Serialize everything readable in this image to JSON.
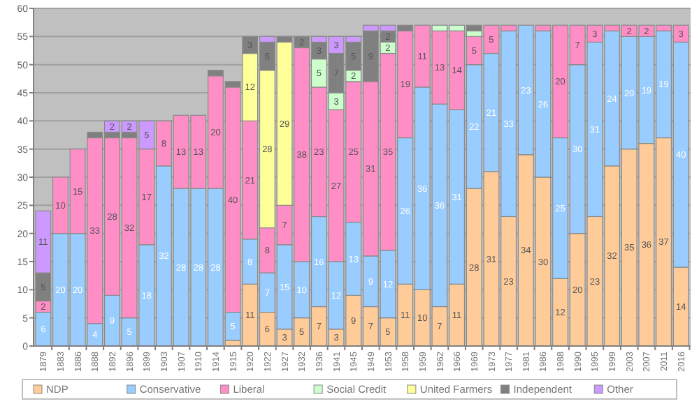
{
  "chart_data": {
    "type": "bar",
    "stacked": true,
    "categories": [
      "1879",
      "1883",
      "1886",
      "1888",
      "1892",
      "1896",
      "1899",
      "1903",
      "1907",
      "1910",
      "1914",
      "1915",
      "1920",
      "1922",
      "1927",
      "1932",
      "1936",
      "1941",
      "1945",
      "1949",
      "1953",
      "1958",
      "1959",
      "1962",
      "1966",
      "1969",
      "1973",
      "1977",
      "1981",
      "1986",
      "1988",
      "1990",
      "1995",
      "1999",
      "2003",
      "2007",
      "2011",
      "2016"
    ],
    "ylim": [
      0,
      60
    ],
    "yticks": [
      0,
      5,
      10,
      15,
      20,
      25,
      30,
      35,
      40,
      45,
      50,
      55,
      60
    ],
    "grid": "y",
    "legend": "bottom",
    "series": [
      {
        "name": "NDP",
        "color": "#ffcc99",
        "values": [
          null,
          null,
          null,
          null,
          null,
          null,
          null,
          null,
          null,
          null,
          null,
          1,
          11,
          6,
          3,
          5,
          7,
          3,
          9,
          7,
          5,
          11,
          10,
          7,
          11,
          28,
          31,
          23,
          34,
          30,
          12,
          20,
          23,
          32,
          35,
          36,
          37,
          14
        ],
        "value_labels": [
          null,
          null,
          null,
          null,
          null,
          null,
          null,
          null,
          null,
          null,
          null,
          null,
          "11",
          "6",
          "3",
          "5",
          "7",
          "3",
          "9",
          "7",
          "5",
          "11",
          "10",
          "7",
          "11",
          "28",
          "31",
          "23",
          "34",
          "30",
          "12",
          "20",
          "23",
          "32",
          "35",
          "36",
          "37",
          "14"
        ]
      },
      {
        "name": "Conservative",
        "color": "#99ccff",
        "values": [
          6,
          20,
          20,
          4,
          9,
          5,
          18,
          32,
          28,
          28,
          28,
          5,
          8,
          7,
          15,
          10,
          16,
          12,
          13,
          9,
          12,
          26,
          36,
          36,
          31,
          22,
          21,
          33,
          23,
          26,
          25,
          30,
          31,
          24,
          20,
          19,
          19,
          40
        ],
        "value_labels": [
          "6",
          "20",
          "20",
          "4",
          "9",
          "5",
          "18",
          "32",
          "28",
          "28",
          "28",
          "5",
          "8",
          "7",
          "15",
          "10",
          "16",
          "12",
          "13",
          "9",
          "12",
          "26",
          "36",
          "36",
          "31",
          "22",
          "21",
          "33",
          "23",
          "26",
          "25",
          "30",
          "31",
          "24",
          "20",
          "19",
          "19",
          "40"
        ]
      },
      {
        "name": "Liberal",
        "color": "#ff8ec6",
        "values": [
          2,
          10,
          15,
          33,
          28,
          32,
          17,
          8,
          13,
          13,
          20,
          40,
          21,
          8,
          7,
          38,
          23,
          27,
          25,
          31,
          35,
          19,
          11,
          13,
          14,
          5,
          5,
          1,
          null,
          1,
          20,
          7,
          3,
          1,
          2,
          2,
          1,
          3
        ],
        "value_labels": [
          "2",
          "10",
          "15",
          "33",
          "28",
          "32",
          "17",
          "8",
          "13",
          "13",
          "20",
          "40",
          "21",
          "8",
          "7",
          "38",
          "23",
          "27",
          "25",
          "31",
          "35",
          "19",
          "11",
          "13",
          "14",
          "5",
          "5",
          null,
          null,
          null,
          "20",
          "7",
          "3",
          null,
          "2",
          "2",
          null,
          "3"
        ]
      },
      {
        "name": "Social Credit",
        "color": "#ccffcc",
        "values": [
          null,
          null,
          null,
          null,
          null,
          null,
          null,
          null,
          null,
          null,
          null,
          null,
          null,
          null,
          null,
          null,
          5,
          3,
          2,
          null,
          2,
          null,
          null,
          1,
          1,
          1,
          null,
          null,
          null,
          null,
          null,
          null,
          null,
          null,
          null,
          null,
          null,
          null
        ],
        "value_labels": [
          null,
          null,
          null,
          null,
          null,
          null,
          null,
          null,
          null,
          null,
          null,
          null,
          null,
          null,
          null,
          null,
          "5",
          "3",
          "2",
          null,
          "2",
          null,
          null,
          null,
          null,
          null,
          null,
          null,
          null,
          null,
          null,
          null,
          null,
          null,
          null,
          null,
          null,
          null
        ]
      },
      {
        "name": "United Farmers",
        "color": "#ffff99",
        "values": [
          null,
          null,
          null,
          null,
          null,
          null,
          null,
          null,
          null,
          null,
          null,
          null,
          12,
          28,
          29,
          null,
          null,
          null,
          null,
          null,
          null,
          null,
          null,
          null,
          null,
          null,
          null,
          null,
          null,
          null,
          null,
          null,
          null,
          null,
          null,
          null,
          null,
          null
        ],
        "value_labels": [
          null,
          null,
          null,
          null,
          null,
          null,
          null,
          null,
          null,
          null,
          null,
          null,
          "12",
          "28",
          "29",
          null,
          null,
          null,
          null,
          null,
          null,
          null,
          null,
          null,
          null,
          null,
          null,
          null,
          null,
          null,
          null,
          null,
          null,
          null,
          null,
          null,
          null,
          null
        ]
      },
      {
        "name": "Independent",
        "color": "#808080",
        "values": [
          5,
          null,
          null,
          1,
          1,
          1,
          null,
          null,
          null,
          null,
          1,
          1,
          3,
          5,
          1,
          2,
          3,
          7,
          5,
          9,
          2,
          1,
          null,
          null,
          null,
          1,
          null,
          null,
          null,
          null,
          null,
          null,
          null,
          null,
          null,
          null,
          null,
          null
        ],
        "value_labels": [
          "5",
          null,
          null,
          null,
          null,
          null,
          null,
          null,
          null,
          null,
          null,
          null,
          "3",
          "5",
          null,
          "2",
          "3",
          "7",
          "5",
          "9",
          "2",
          null,
          null,
          null,
          null,
          null,
          null,
          null,
          null,
          null,
          null,
          null,
          null,
          null,
          null,
          null,
          null,
          null
        ]
      },
      {
        "name": "Other",
        "color": "#cc99ff",
        "values": [
          11,
          null,
          null,
          null,
          2,
          2,
          5,
          null,
          null,
          null,
          null,
          null,
          null,
          1,
          null,
          null,
          1,
          3,
          1,
          1,
          1,
          null,
          null,
          null,
          null,
          null,
          null,
          null,
          null,
          null,
          null,
          null,
          null,
          null,
          null,
          null,
          null,
          null
        ],
        "value_labels": [
          "11",
          null,
          null,
          null,
          "2",
          "2",
          "5",
          null,
          null,
          null,
          null,
          null,
          null,
          null,
          null,
          null,
          null,
          "3",
          null,
          null,
          null,
          null,
          null,
          null,
          null,
          null,
          null,
          null,
          null,
          null,
          null,
          null,
          null,
          null,
          null,
          null,
          null,
          null
        ]
      }
    ]
  }
}
